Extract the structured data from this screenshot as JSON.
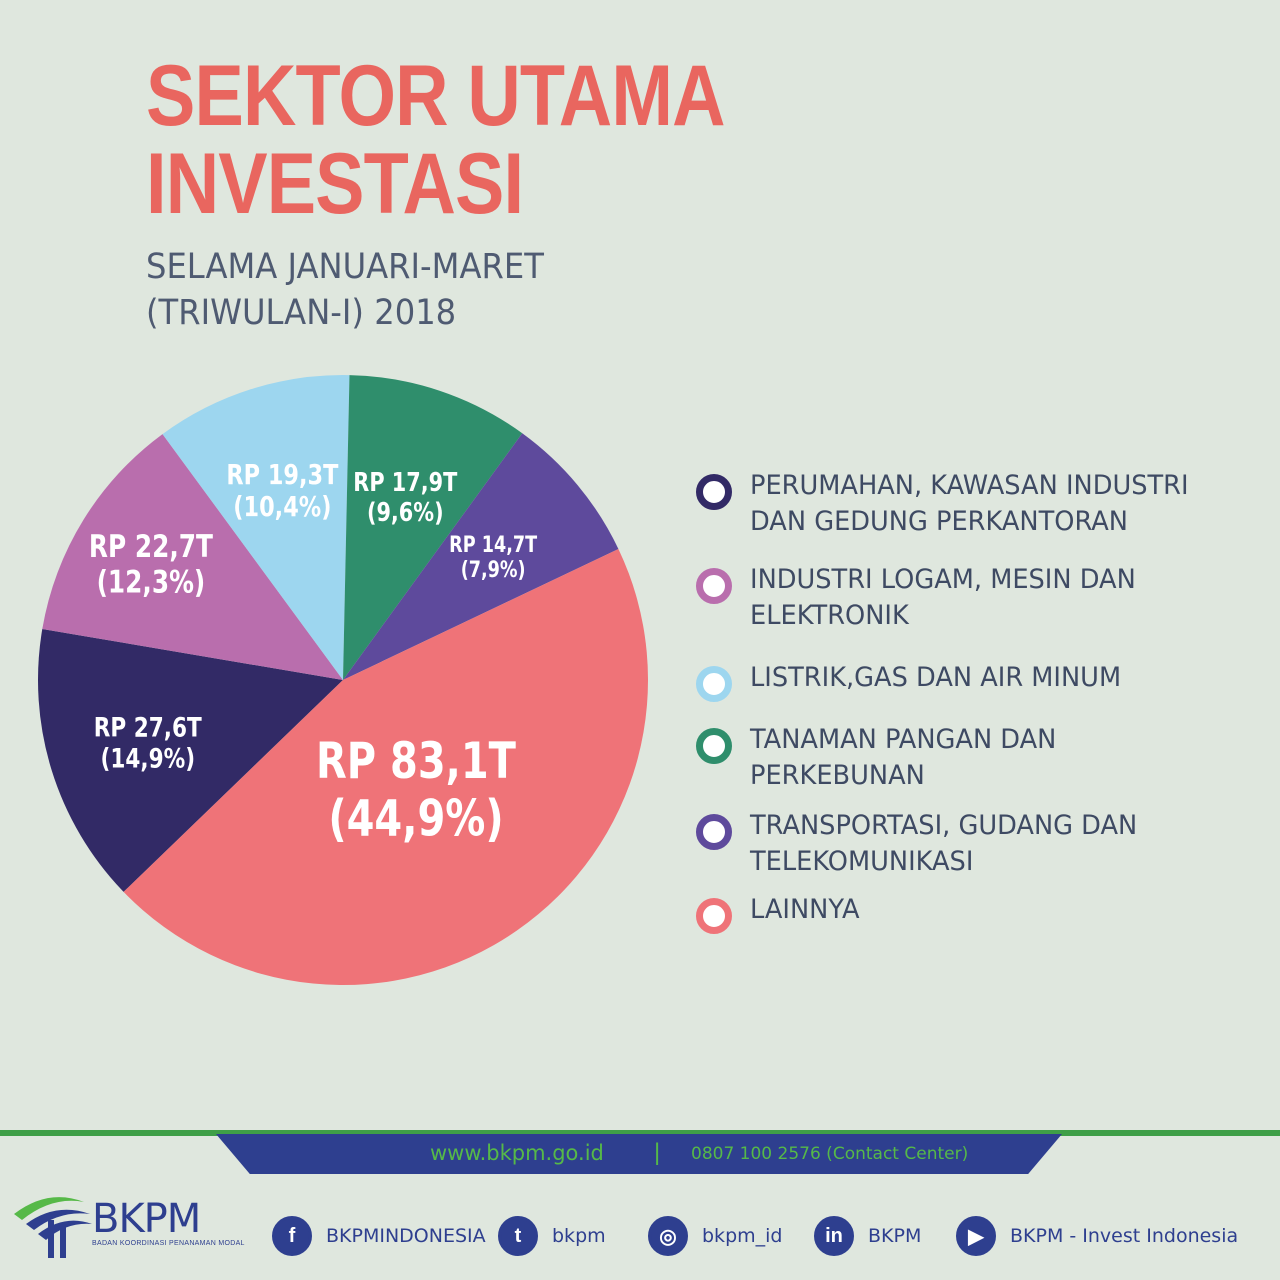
{
  "title_line1": "SEKTOR UTAMA",
  "title_line2": "INVESTASI",
  "subtitle_line1": "SELAMA JANUARI-MARET",
  "subtitle_line2": "(TRIWULAN-I) 2018",
  "chart_data": {
    "type": "pie",
    "title": "SEKTOR UTAMA INVESTASI",
    "subtitle": "SELAMA JANUARI-MARET (TRIWULAN-I) 2018",
    "legend_position": "right",
    "slices": [
      {
        "legend_line1": "PERUMAHAN, KAWASAN INDUSTRI",
        "legend_line2": "DAN GEDUNG PERKANTORAN",
        "value": 27.6,
        "percent": 14.9,
        "label_value": "RP 27,6T",
        "label_percent": "(14,9%)",
        "color": "#322a66"
      },
      {
        "legend_line1": "INDUSTRI LOGAM, MESIN DAN",
        "legend_line2": "ELEKTRONIK",
        "value": 22.7,
        "percent": 12.3,
        "label_value": "RP 22,7T",
        "label_percent": "(12,3%)",
        "color": "#b96ead"
      },
      {
        "legend_line1": "LISTRIK,GAS DAN AIR MINUM",
        "legend_line2": "",
        "value": 19.3,
        "percent": 10.4,
        "label_value": "RP 19,3T",
        "label_percent": "(10,4%)",
        "color": "#9dd6ef"
      },
      {
        "legend_line1": "TANAMAN PANGAN DAN",
        "legend_line2": "PERKEBUNAN",
        "value": 17.9,
        "percent": 9.6,
        "label_value": "RP 17,9T",
        "label_percent": "(9,6%)",
        "color": "#2f8e6c"
      },
      {
        "legend_line1": "TRANSPORTASI, GUDANG DAN",
        "legend_line2": "TELEKOMUNIKASI",
        "value": 14.7,
        "percent": 7.9,
        "label_value": "RP 14,7T",
        "label_percent": "(7,9%)",
        "color": "#5e4a9c"
      },
      {
        "legend_line1": "LAINNYA",
        "legend_line2": "",
        "value": 83.1,
        "percent": 44.9,
        "label_value": "RP 83,1T",
        "label_percent": "(44,9%)",
        "color": "#ef7378"
      }
    ]
  },
  "footer": {
    "website": "www.bkpm.go.id",
    "separator": "|",
    "phone": "0807 100 2576 (Contact Center)",
    "brand": "BKPM",
    "brand_sub": "BADAN KOORDINASI PENANAMAN MODAL",
    "social": [
      {
        "icon": "facebook-icon",
        "glyph": "f",
        "label": "BKPMINDONESIA"
      },
      {
        "icon": "twitter-icon",
        "glyph": "t",
        "label": "bkpm"
      },
      {
        "icon": "instagram-icon",
        "glyph": "◎",
        "label": "bkpm_id"
      },
      {
        "icon": "linkedin-icon",
        "glyph": "in",
        "label": "BKPM"
      },
      {
        "icon": "youtube-icon",
        "glyph": "▶",
        "label": "BKPM - Invest Indonesia"
      }
    ]
  }
}
